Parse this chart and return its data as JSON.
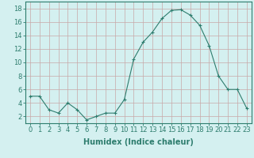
{
  "x": [
    0,
    1,
    2,
    3,
    4,
    5,
    6,
    7,
    8,
    9,
    10,
    11,
    12,
    13,
    14,
    15,
    16,
    17,
    18,
    19,
    20,
    21,
    22,
    23
  ],
  "y": [
    5,
    5,
    3,
    2.5,
    4,
    3,
    1.5,
    2,
    2.5,
    2.5,
    4.5,
    10.5,
    13,
    14.5,
    16.5,
    17.7,
    17.8,
    17,
    15.5,
    12.5,
    8,
    6,
    6,
    3.2
  ],
  "xlabel": "Humidex (Indice chaleur)",
  "ylabel": "",
  "xlim": [
    -0.5,
    23.5
  ],
  "ylim": [
    1,
    19
  ],
  "yticks": [
    2,
    4,
    6,
    8,
    10,
    12,
    14,
    16,
    18
  ],
  "xticks": [
    0,
    1,
    2,
    3,
    4,
    5,
    6,
    7,
    8,
    9,
    10,
    11,
    12,
    13,
    14,
    15,
    16,
    17,
    18,
    19,
    20,
    21,
    22,
    23
  ],
  "line_color": "#2e7d6e",
  "marker_color": "#2e7d6e",
  "bg_color": "#d4f0f0",
  "grid_color": "#c8a8a8",
  "axis_color": "#2e7d6e",
  "label_color": "#2e7d6e",
  "tick_color": "#2e7d6e",
  "font_size": 6,
  "xlabel_fontsize": 7,
  "marker": "+"
}
